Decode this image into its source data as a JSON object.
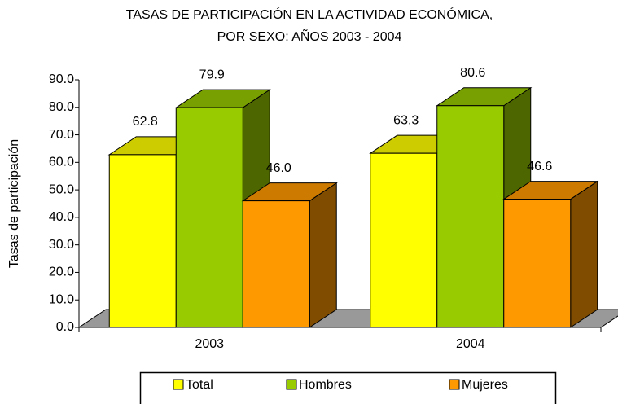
{
  "chart_data": {
    "type": "bar3d",
    "title": [
      "TASAS DE PARTICIPACIÓN EN LA ACTIVIDAD ECONÓMICA,",
      "POR SEXO: AÑOS 2003 - 2004"
    ],
    "y_label": "Tasas de participación",
    "categories": [
      "2003",
      "2004"
    ],
    "series": [
      {
        "name": "Total",
        "color": "#ffff00",
        "top_color": "#cccc00",
        "side_color": "#999900",
        "values": [
          62.8,
          63.3
        ],
        "value_labels": [
          "62.8",
          "63.3"
        ]
      },
      {
        "name": "Hombres",
        "color": "#99cc00",
        "top_color": "#77a000",
        "side_color": "#4d6600",
        "values": [
          79.9,
          80.6
        ],
        "value_labels": [
          "79.9",
          "80.6"
        ]
      },
      {
        "name": "Mujeres",
        "color": "#ff9900",
        "top_color": "#cc7a00",
        "side_color": "#804c00",
        "values": [
          46.0,
          46.6
        ],
        "value_labels": [
          "46.0",
          "46.6"
        ]
      }
    ],
    "ylim": [
      0,
      90
    ],
    "yticks": [
      {
        "value": 0,
        "label": "0.0"
      },
      {
        "value": 10,
        "label": "10.0"
      },
      {
        "value": 20,
        "label": "20.0"
      },
      {
        "value": 30,
        "label": "30.0"
      },
      {
        "value": 40,
        "label": "40.0"
      },
      {
        "value": 50,
        "label": "50.0"
      },
      {
        "value": 60,
        "label": "60.0"
      },
      {
        "value": 70,
        "label": "70.0"
      },
      {
        "value": 80,
        "label": "80.0"
      },
      {
        "value": 90,
        "label": "90.0"
      }
    ],
    "floor_color": "#999999",
    "legend": "bottom"
  }
}
